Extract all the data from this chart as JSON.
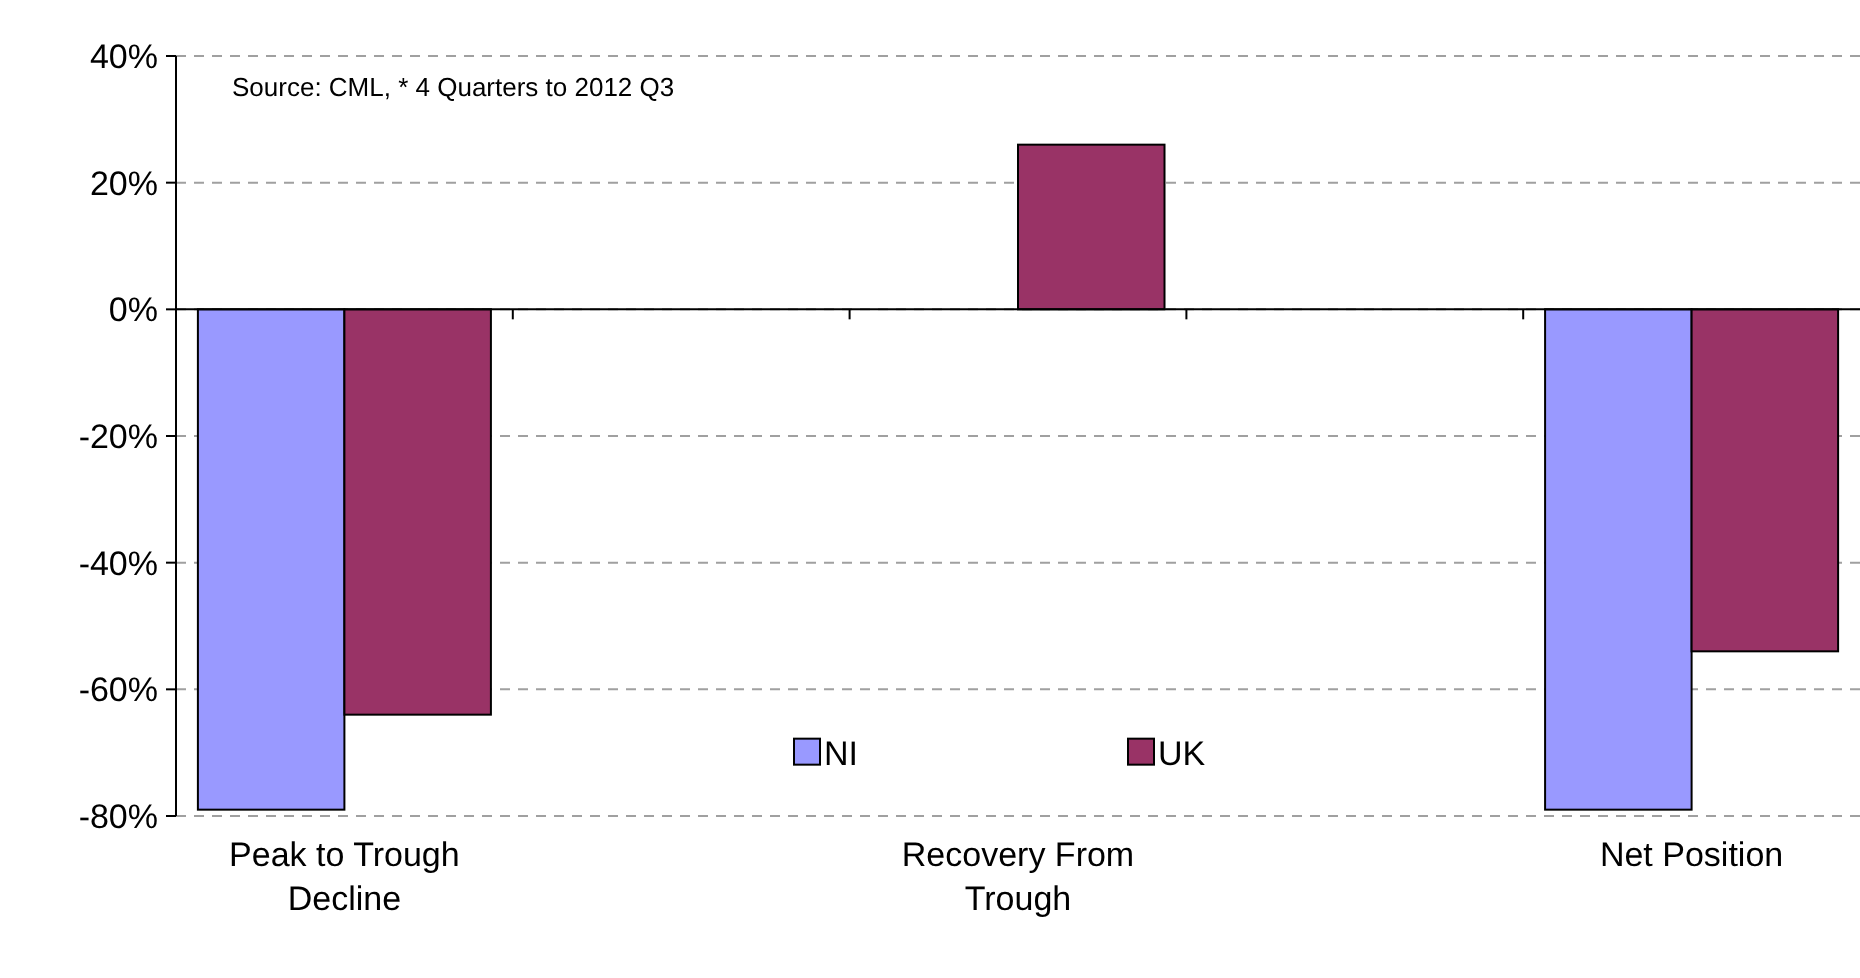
{
  "chart_data": {
    "type": "bar",
    "categories": [
      "Peak to Trough Decline",
      null,
      "Recovery From Trough",
      null,
      "Net Position"
    ],
    "series": [
      {
        "name": "NI",
        "color": "#9999ff",
        "values": [
          -79,
          null,
          0,
          null,
          -79
        ]
      },
      {
        "name": "UK",
        "color": "#993366",
        "values": [
          -64,
          null,
          26,
          null,
          -54
        ]
      }
    ],
    "ylim": [
      -80,
      40
    ],
    "yticks": [
      {
        "value": -80,
        "label": "-80%"
      },
      {
        "value": -60,
        "label": "-60%"
      },
      {
        "value": -40,
        "label": "-40%"
      },
      {
        "value": -20,
        "label": "-20%"
      },
      {
        "value": 0,
        "label": "0%"
      },
      {
        "value": 20,
        "label": "20%"
      },
      {
        "value": 40,
        "label": "40%"
      }
    ],
    "grid": "y",
    "legend": "bottom",
    "annotations": [
      "Source: CML, * 4 Quarters to 2012 Q3"
    ]
  }
}
